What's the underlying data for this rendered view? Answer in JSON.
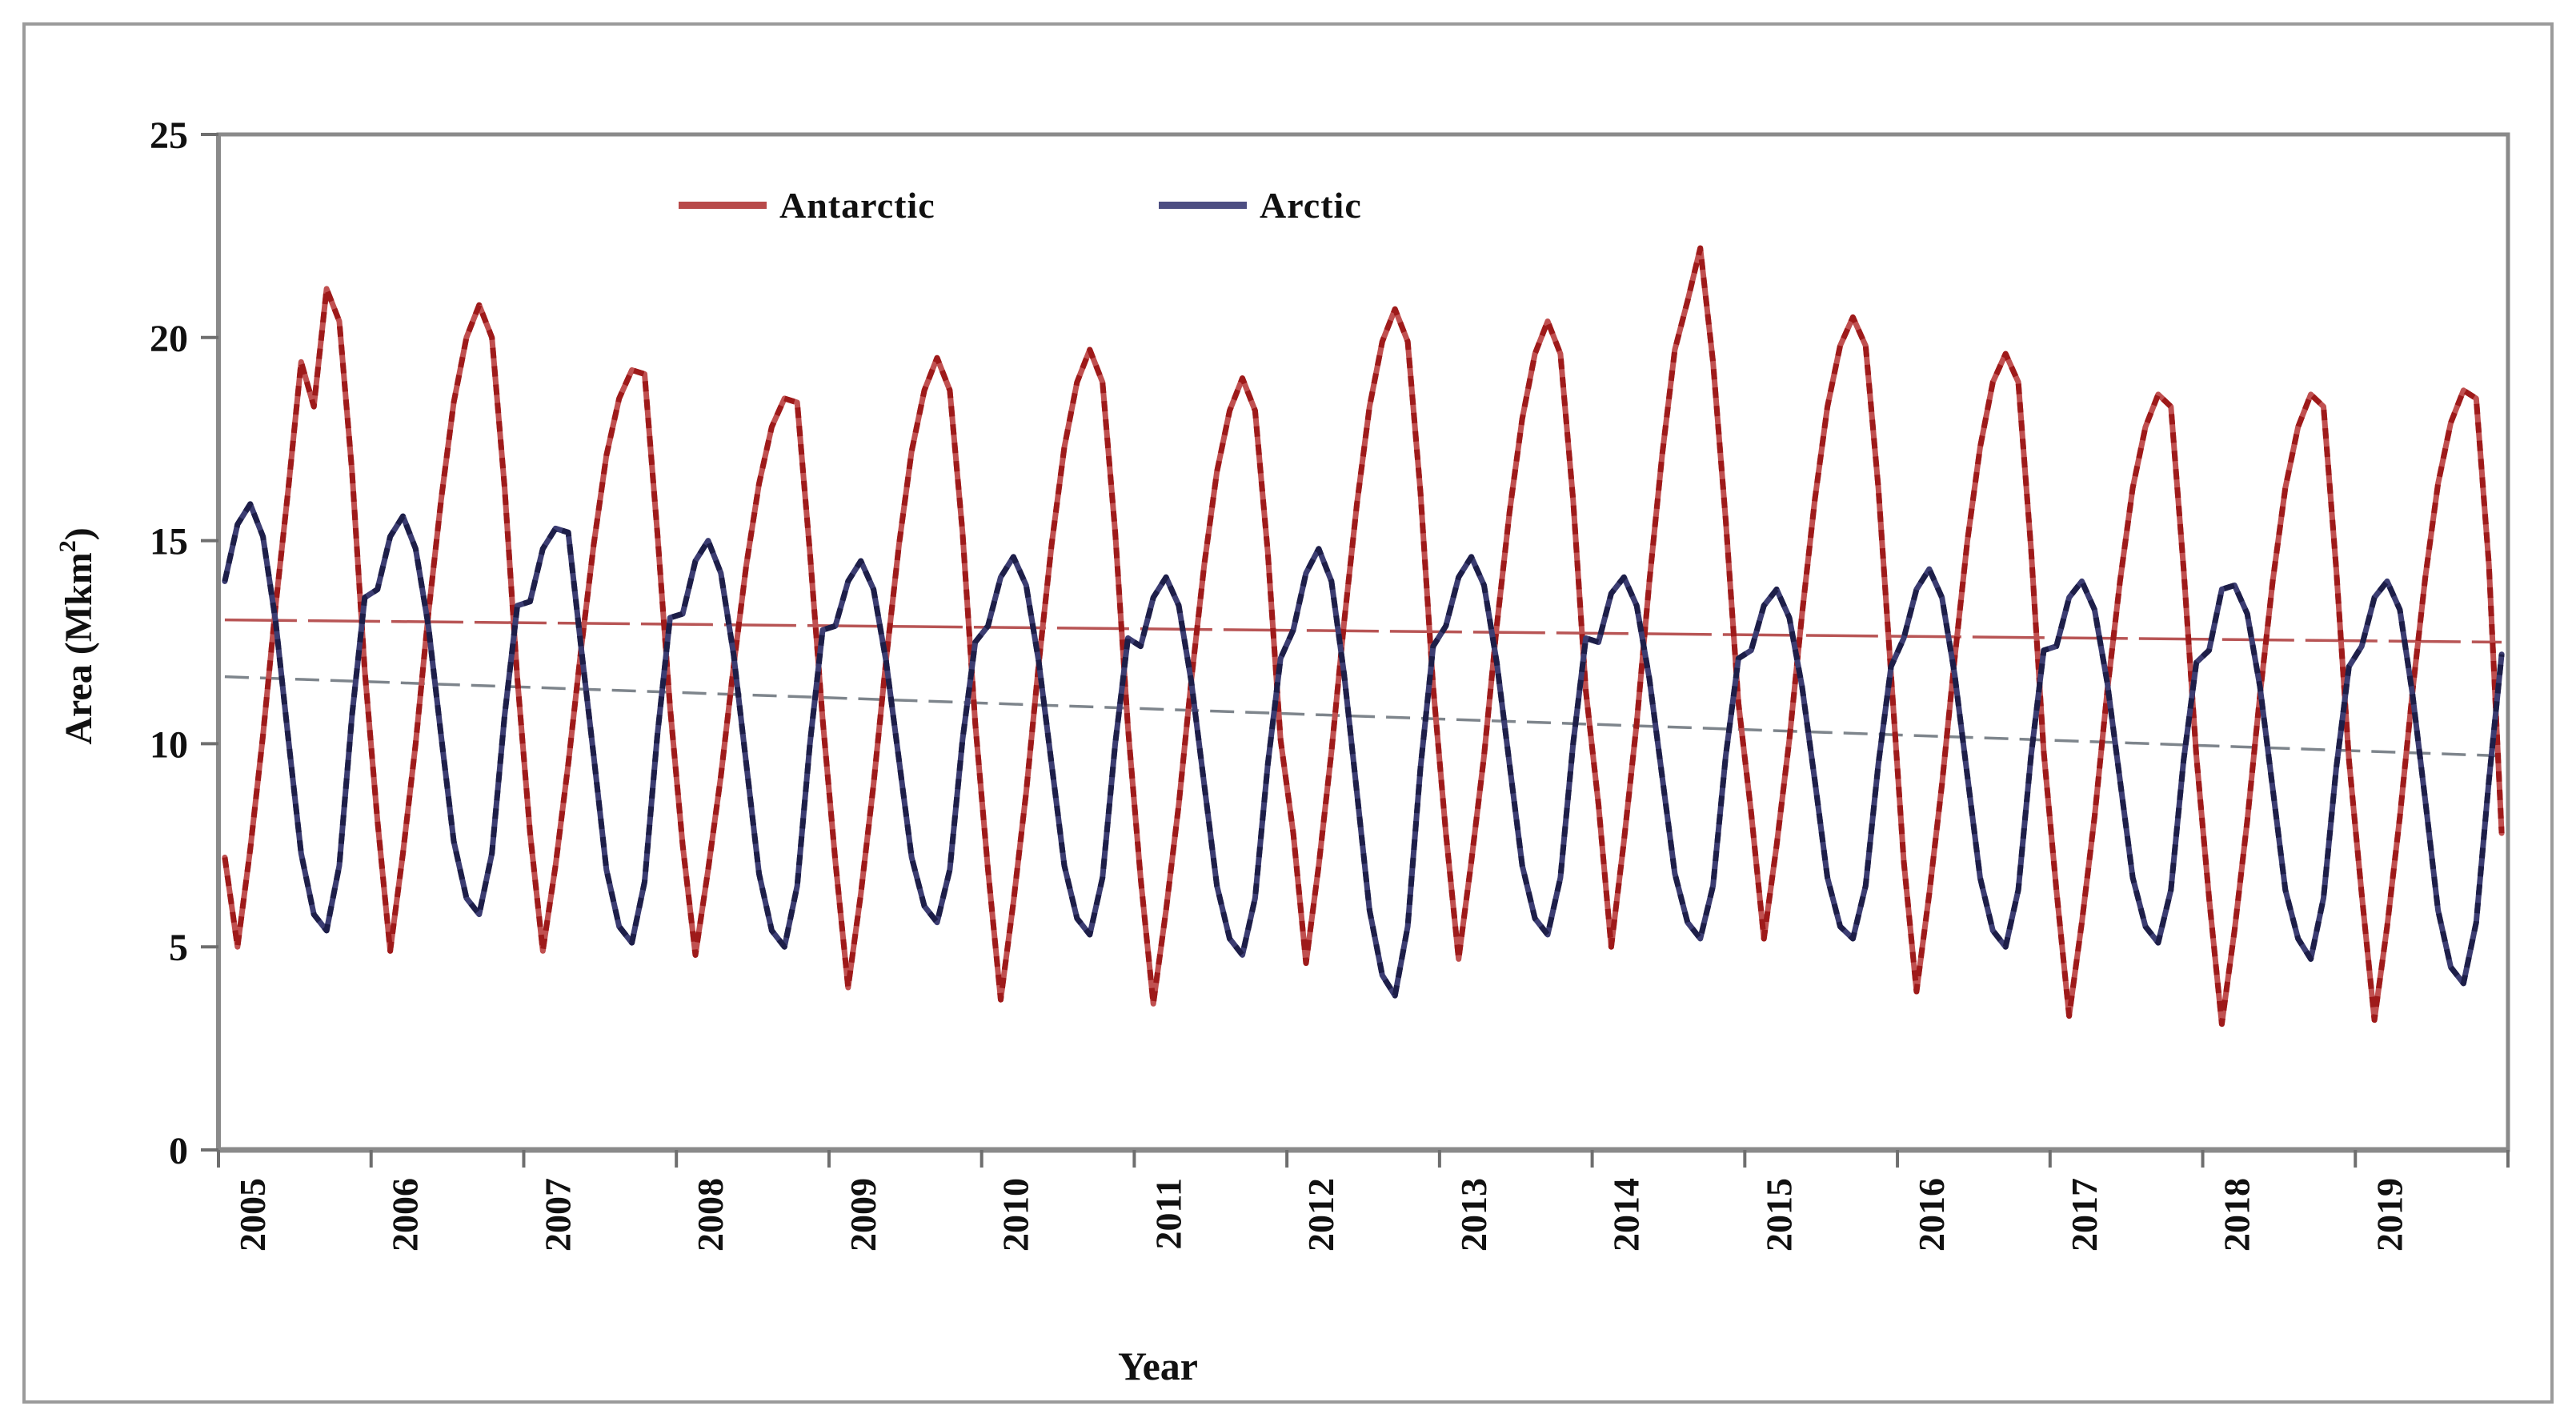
{
  "figure": {
    "background": "#ffffff",
    "outer_border_color": "#9b9b9b",
    "frame_color": "#8a8a8a",
    "tick_color": "#6e6e6e",
    "text_color": "#111111"
  },
  "chart_data": {
    "type": "line",
    "title": "",
    "xlabel": "Year",
    "ylabel": "Area (Mkm²)",
    "ylabel_parts": {
      "main": "Area (Mkm",
      "sup": "2",
      "end": ")"
    },
    "ylim": [
      0,
      25
    ],
    "y_ticks": [
      0,
      5,
      10,
      15,
      20,
      25
    ],
    "x_range": {
      "start": "Jan 2005",
      "end": "Dec 2019",
      "points_per_year": 12
    },
    "grid": false,
    "legend_position": "top-center",
    "series": [
      {
        "name": "Antarctic",
        "color": "#b22222",
        "line_base": "#c05050",
        "line_dash": "#9e1a1a",
        "legend_color": "#b84a4a"
      },
      {
        "name": "Arctic",
        "color": "#35366b",
        "line_base": "#3c3d72",
        "line_dash": "#1d1e48",
        "legend_color": "#4d4e82"
      }
    ],
    "trend_lines": [
      {
        "name": "Antarctic linear trend",
        "color": "#b85555",
        "start_value": 13.05,
        "end_value": 12.5,
        "dash": "90 14"
      },
      {
        "name": "Arctic linear trend",
        "color": "#7e858c",
        "start_value": 11.65,
        "end_value": 9.7,
        "dash": "30 14"
      }
    ],
    "years": [
      {
        "year": 2005,
        "antarctic": [
          7.2,
          5.0,
          7.4,
          10.2,
          13.4,
          16.3,
          19.4,
          18.3,
          21.2,
          20.4,
          16.7,
          11.8
        ],
        "arctic": [
          14.0,
          15.4,
          15.9,
          15.1,
          13.0,
          10.1,
          7.3,
          5.8,
          5.4,
          7.0,
          10.7,
          13.6
        ]
      },
      {
        "year": 2006,
        "antarctic": [
          8.1,
          4.9,
          7.3,
          10.0,
          13.2,
          16.0,
          18.4,
          20.0,
          20.8,
          20.0,
          16.3,
          11.6
        ],
        "arctic": [
          13.8,
          15.1,
          15.6,
          14.8,
          12.9,
          10.2,
          7.6,
          6.2,
          5.8,
          7.3,
          10.7,
          13.4
        ]
      },
      {
        "year": 2007,
        "antarctic": [
          7.8,
          4.9,
          7.0,
          9.5,
          12.3,
          14.9,
          17.1,
          18.5,
          19.2,
          19.1,
          15.2,
          10.9
        ],
        "arctic": [
          13.5,
          14.8,
          15.3,
          15.2,
          12.4,
          9.7,
          6.9,
          5.5,
          5.1,
          6.6,
          10.2,
          13.1
        ]
      },
      {
        "year": 2008,
        "antarctic": [
          7.5,
          4.8,
          6.9,
          9.2,
          11.9,
          14.4,
          16.4,
          17.8,
          18.5,
          18.4,
          14.7,
          10.6
        ],
        "arctic": [
          13.2,
          14.5,
          15.0,
          14.2,
          12.2,
          9.5,
          6.8,
          5.4,
          5.0,
          6.5,
          10.0,
          12.8
        ]
      },
      {
        "year": 2009,
        "antarctic": [
          7.1,
          4.0,
          6.3,
          9.0,
          12.1,
          14.9,
          17.2,
          18.7,
          19.5,
          18.7,
          15.2,
          10.5
        ],
        "arctic": [
          12.9,
          14.0,
          14.5,
          13.8,
          12.0,
          9.6,
          7.2,
          6.0,
          5.6,
          6.9,
          10.1,
          12.5
        ]
      },
      {
        "year": 2010,
        "antarctic": [
          6.9,
          3.7,
          6.1,
          8.8,
          12.0,
          14.9,
          17.3,
          18.9,
          19.7,
          18.9,
          15.2,
          10.4
        ],
        "arctic": [
          12.9,
          14.1,
          14.6,
          13.9,
          12.0,
          9.5,
          7.0,
          5.7,
          5.3,
          6.7,
          10.0,
          12.6
        ]
      },
      {
        "year": 2011,
        "antarctic": [
          6.7,
          3.6,
          5.9,
          8.5,
          11.6,
          14.4,
          16.7,
          18.2,
          19.0,
          18.2,
          14.7,
          10.1
        ],
        "arctic": [
          12.4,
          13.6,
          14.1,
          13.4,
          11.5,
          9.0,
          6.5,
          5.2,
          4.8,
          6.2,
          9.5,
          12.1
        ]
      },
      {
        "year": 2012,
        "antarctic": [
          7.8,
          4.6,
          7.0,
          9.8,
          13.0,
          15.9,
          18.3,
          19.9,
          20.7,
          19.9,
          16.2,
          11.4
        ],
        "arctic": [
          12.8,
          14.2,
          14.8,
          14.0,
          11.7,
          8.8,
          5.9,
          4.3,
          3.8,
          5.5,
          9.4,
          12.4
        ]
      },
      {
        "year": 2013,
        "antarctic": [
          7.8,
          4.7,
          7.1,
          9.7,
          12.9,
          15.7,
          18.0,
          19.6,
          20.4,
          19.6,
          16.0,
          11.3
        ],
        "arctic": [
          12.9,
          14.1,
          14.6,
          13.9,
          12.0,
          9.5,
          7.0,
          5.7,
          5.3,
          6.7,
          10.0,
          12.6
        ]
      },
      {
        "year": 2014,
        "antarctic": [
          8.5,
          5.0,
          7.6,
          10.5,
          14.0,
          17.1,
          19.7,
          20.9,
          22.2,
          19.4,
          15.5,
          11.0
        ],
        "arctic": [
          12.5,
          13.7,
          14.1,
          13.4,
          11.6,
          9.2,
          6.8,
          5.6,
          5.2,
          6.5,
          9.7,
          12.1
        ]
      },
      {
        "year": 2015,
        "antarctic": [
          8.3,
          5.2,
          7.5,
          10.1,
          13.2,
          16.0,
          18.3,
          19.8,
          20.5,
          19.8,
          16.3,
          11.7
        ],
        "arctic": [
          12.3,
          13.4,
          13.8,
          13.1,
          11.4,
          9.1,
          6.7,
          5.5,
          5.2,
          6.5,
          9.5,
          11.9
        ]
      },
      {
        "year": 2016,
        "antarctic": [
          7.1,
          3.9,
          6.3,
          9.0,
          12.1,
          15.0,
          17.3,
          18.9,
          19.6,
          18.9,
          14.8,
          9.8
        ],
        "arctic": [
          12.6,
          13.8,
          14.3,
          13.6,
          11.7,
          9.2,
          6.7,
          5.4,
          5.0,
          6.4,
          9.7,
          12.3
        ]
      },
      {
        "year": 2017,
        "antarctic": [
          6.4,
          3.3,
          5.6,
          8.2,
          11.3,
          14.0,
          16.3,
          17.8,
          18.6,
          18.3,
          14.3,
          9.7
        ],
        "arctic": [
          12.4,
          13.6,
          14.0,
          13.3,
          11.5,
          9.1,
          6.7,
          5.5,
          5.1,
          6.4,
          9.6,
          12.0
        ]
      },
      {
        "year": 2018,
        "antarctic": [
          6.2,
          3.1,
          5.4,
          8.1,
          11.2,
          14.0,
          16.3,
          17.8,
          18.6,
          18.3,
          14.3,
          9.6
        ],
        "arctic": [
          12.3,
          13.8,
          13.9,
          13.2,
          11.4,
          8.9,
          6.4,
          5.2,
          4.7,
          6.2,
          9.4,
          11.9
        ]
      },
      {
        "year": 2019,
        "antarctic": [
          6.3,
          3.2,
          5.5,
          8.2,
          11.3,
          14.1,
          16.4,
          17.9,
          18.7,
          18.5,
          14.4,
          7.8
        ],
        "arctic": [
          12.4,
          13.6,
          14.0,
          13.3,
          11.2,
          8.6,
          5.9,
          4.5,
          4.1,
          5.6,
          9.1,
          12.2
        ]
      }
    ]
  }
}
